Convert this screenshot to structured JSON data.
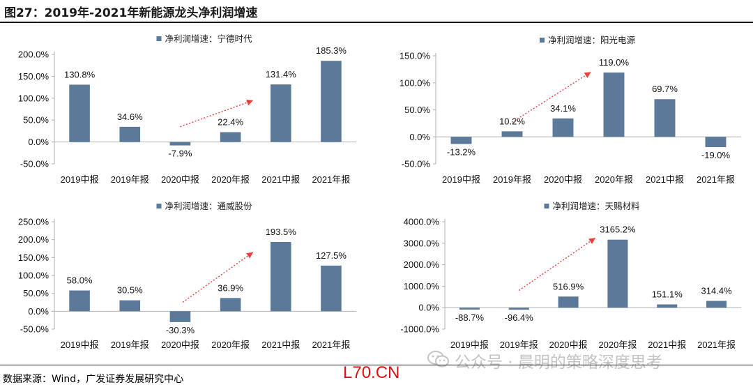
{
  "header": {
    "title": "图27：2019年-2021年新能源龙头净利润增速"
  },
  "footer": {
    "source": "数据来源：Wind，广发证券发展研究中心"
  },
  "watermark": {
    "text": "公众号 · 晨明的策略深度思考",
    "site": "L70.CN"
  },
  "colors": {
    "bar": "#5b7a99",
    "arrow": "#e8403a",
    "axis": "#b0b0b0"
  },
  "chart_data": [
    {
      "type": "bar",
      "legend": "净利润增速：宁德时代",
      "legend_position": "top-center",
      "categories": [
        "2019中报",
        "2019年报",
        "2020中报",
        "2020年报",
        "2021中报",
        "2021年报"
      ],
      "values": [
        130.8,
        34.6,
        -7.9,
        22.4,
        131.4,
        185.3
      ],
      "labels": [
        "130.8%",
        "34.6%",
        "-7.9%",
        "22.4%",
        "131.4%",
        "185.3%"
      ],
      "ylim": [
        -50,
        200
      ],
      "yticks": [
        "-50.0%",
        "0.0%",
        "50.0%",
        "100.0%",
        "150.0%",
        "200.0%"
      ],
      "ytick_values": [
        -50,
        0,
        50,
        100,
        150,
        200
      ],
      "trend_arrow": {
        "from": [
          2,
          35
        ],
        "to": [
          3.45,
          95
        ]
      },
      "grid": false
    },
    {
      "type": "bar",
      "legend": "净利润增速：阳光电源",
      "legend_position": "top-center",
      "categories": [
        "2019中报",
        "2019年报",
        "2020中报",
        "2020年报",
        "2021中报",
        "2021年报"
      ],
      "values": [
        -13.2,
        10.2,
        34.1,
        119.0,
        69.7,
        -19.0
      ],
      "labels": [
        "-13.2%",
        "10.2%",
        "34.1%",
        "119.0%",
        "69.7%",
        "-19.0%"
      ],
      "ylim": [
        -50,
        150
      ],
      "yticks": [
        "-50.0%",
        "0.0%",
        "50.0%",
        "100.0%",
        "150.0%"
      ],
      "ytick_values": [
        -50,
        0,
        50,
        100,
        150
      ],
      "trend_arrow": {
        "from": [
          1,
          27
        ],
        "to": [
          2.55,
          120
        ]
      },
      "grid": false
    },
    {
      "type": "bar",
      "legend": "净利润增速：通威股份",
      "legend_position": "top-center",
      "categories": [
        "2019中报",
        "2019年报",
        "2020中报",
        "2020年报",
        "2021中报",
        "2021年报"
      ],
      "values": [
        58.0,
        30.5,
        -30.3,
        36.9,
        193.5,
        127.5
      ],
      "labels": [
        "58.0%",
        "30.5%",
        "-30.3%",
        "36.9%",
        "193.5%",
        "127.5%"
      ],
      "ylim": [
        -50,
        250
      ],
      "yticks": [
        "-50.0%",
        "0.0%",
        "50.0%",
        "100.0%",
        "150.0%",
        "200.0%",
        "250.0%"
      ],
      "ytick_values": [
        -50,
        0,
        50,
        100,
        150,
        200,
        250
      ],
      "trend_arrow": {
        "from": [
          2.05,
          25
        ],
        "to": [
          3.45,
          165
        ]
      },
      "grid": false
    },
    {
      "type": "bar",
      "legend": "净利润增速：天赐材料",
      "legend_position": "top-center",
      "categories": [
        "2019中报",
        "2019年报",
        "2020中报",
        "2020年报",
        "2021中报",
        "2021年报"
      ],
      "values": [
        -88.7,
        -96.4,
        516.9,
        3165.2,
        151.1,
        314.4
      ],
      "labels": [
        "-88.7%",
        "-96.4%",
        "516.9%",
        "3165.2%",
        "151.1%",
        "314.4%"
      ],
      "ylim": [
        -1000,
        4000
      ],
      "yticks": [
        "-1000.0%",
        "0.0%",
        "1000.0%",
        "2000.0%",
        "3000.0%",
        "4000.0%"
      ],
      "ytick_values": [
        -1000,
        0,
        1000,
        2000,
        3000,
        4000
      ],
      "trend_arrow": {
        "from": [
          1,
          800
        ],
        "to": [
          2.55,
          3250
        ]
      },
      "grid": false
    }
  ]
}
